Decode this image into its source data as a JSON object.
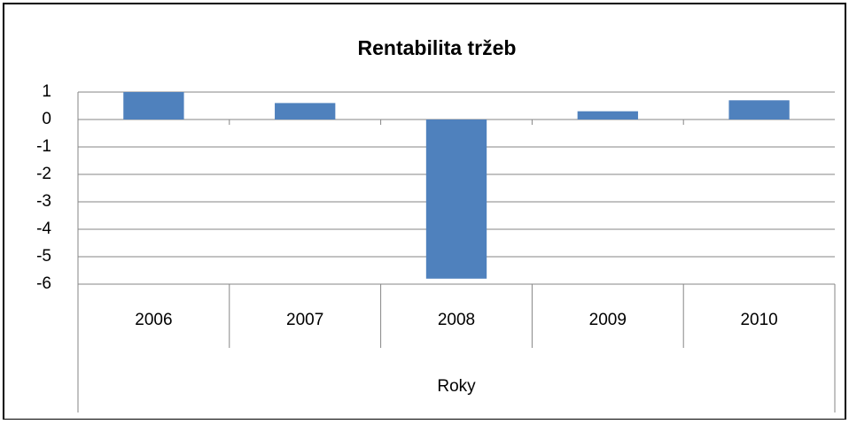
{
  "chart_data": {
    "type": "bar",
    "title": "Rentabilita tržeb",
    "x_label": "Roky",
    "categories": [
      "2006",
      "2007",
      "2008",
      "2009",
      "2010"
    ],
    "values": [
      1.0,
      0.6,
      -5.8,
      0.3,
      0.7
    ],
    "color": "#4f81bd",
    "ylim": [
      -6,
      1
    ],
    "yticks": [
      1,
      0,
      -1,
      -2,
      -3,
      -4,
      -5,
      -6
    ],
    "grid": true
  }
}
